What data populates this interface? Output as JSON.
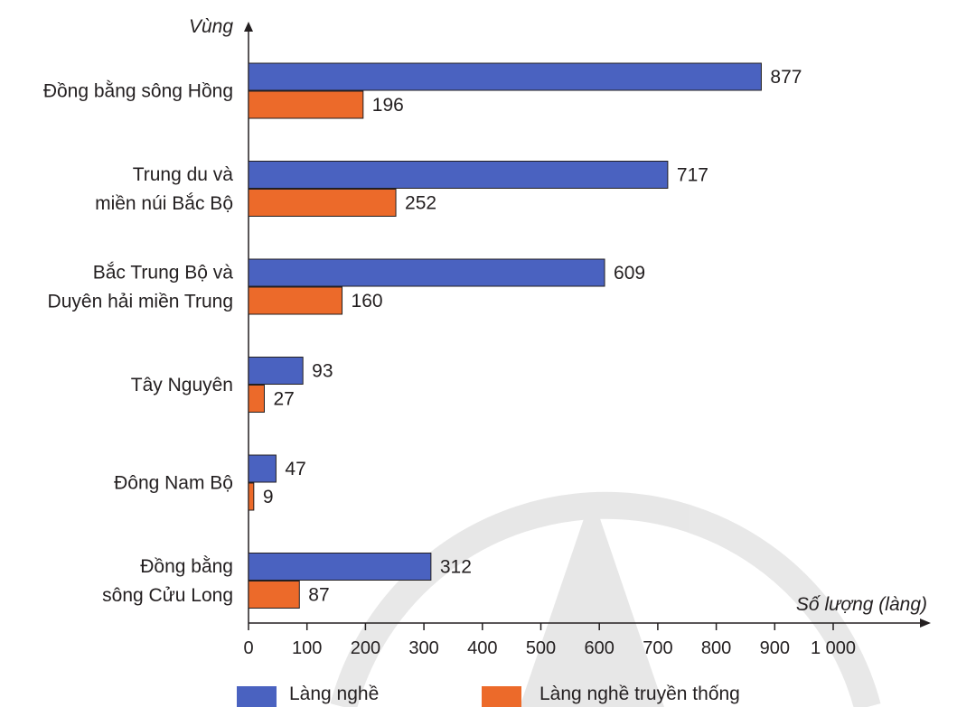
{
  "chart_data": {
    "type": "bar",
    "orientation": "horizontal",
    "categories": [
      [
        "Đồng bằng sông Hồng"
      ],
      [
        "Trung du và",
        "miền núi Bắc Bộ"
      ],
      [
        "Bắc Trung Bộ và",
        "Duyên hải miền Trung"
      ],
      [
        "Tây Nguyên"
      ],
      [
        "Đông Nam Bộ"
      ],
      [
        "Đồng bằng",
        "sông Cửu Long"
      ]
    ],
    "series": [
      {
        "name": "Làng nghề",
        "color": "#4a62c0",
        "values": [
          877,
          717,
          609,
          93,
          47,
          312
        ]
      },
      {
        "name": "Làng nghề truyền thống",
        "color": "#ec6a2a",
        "values": [
          196,
          252,
          160,
          27,
          9,
          87
        ]
      }
    ],
    "xlabel": "Số lượng (làng)",
    "ylabel": "Vùng",
    "xlim": [
      0,
      1000
    ],
    "xticks": [
      0,
      100,
      200,
      300,
      400,
      500,
      600,
      700,
      800,
      900,
      1000
    ],
    "xtick_labels": [
      "0",
      "100",
      "200",
      "300",
      "400",
      "500",
      "600",
      "700",
      "800",
      "900",
      "1 000"
    ],
    "grid": false,
    "legend_position": "bottom"
  }
}
